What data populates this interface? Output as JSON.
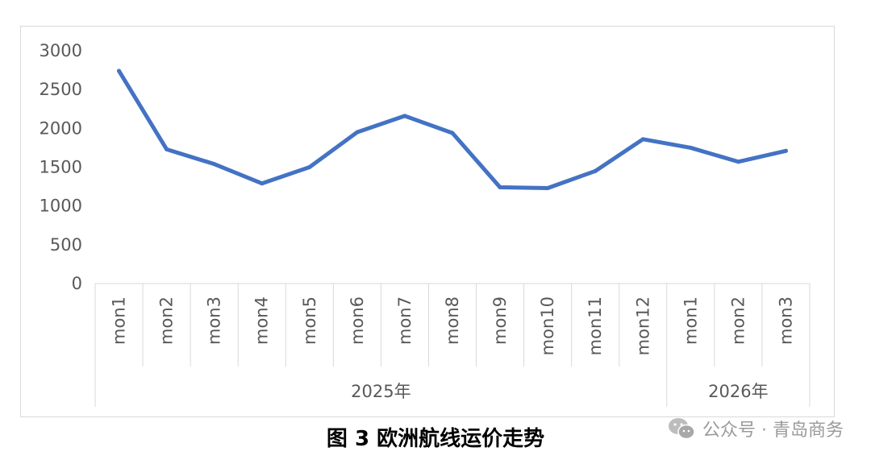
{
  "chart_data": {
    "type": "line",
    "categories": [
      "mon1",
      "mon2",
      "mon3",
      "mon4",
      "mon5",
      "mon6",
      "mon7",
      "mon8",
      "mon9",
      "mon10",
      "mon11",
      "mon12",
      "mon1",
      "mon2",
      "mon3"
    ],
    "groups": [
      {
        "label": "2025年",
        "count": 12
      },
      {
        "label": "2026年",
        "count": 3
      }
    ],
    "series": [
      {
        "values": [
          2740,
          1730,
          1540,
          1290,
          1500,
          1950,
          2160,
          1940,
          1240,
          1230,
          1450,
          1860,
          1750,
          1570,
          1710
        ],
        "color": "#4472c4"
      }
    ],
    "ylim": [
      0,
      3000
    ],
    "yticks": [
      0,
      500,
      1000,
      1500,
      2000,
      2500,
      3000
    ],
    "grid": false,
    "title": "",
    "xlabel": "",
    "ylabel": ""
  },
  "caption": "图 3  欧洲航线运价走势",
  "watermark": {
    "icon": "wechat-icon",
    "text": "公众号 · 青岛商务"
  }
}
